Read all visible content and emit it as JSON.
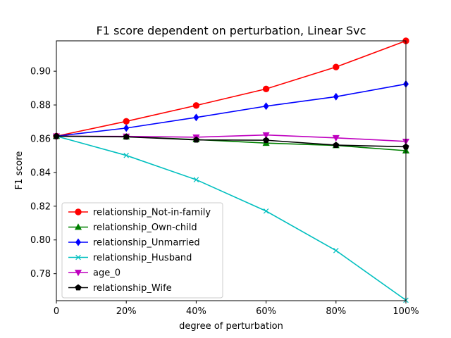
{
  "chart_data": {
    "type": "line",
    "title": "F1 score dependent on perturbation, Linear Svc",
    "xlabel": "degree of perturbation",
    "ylabel": "F1 score",
    "x": [
      0,
      20,
      40,
      60,
      80,
      100
    ],
    "x_tick_labels": [
      "0",
      "20%",
      "40%",
      "60%",
      "80%",
      "100%"
    ],
    "xlim": [
      0,
      100
    ],
    "ylim": [
      0.764,
      0.918
    ],
    "y_ticks": [
      0.78,
      0.8,
      0.82,
      0.84,
      0.86,
      0.88,
      0.9
    ],
    "y_tick_labels": [
      "0.78",
      "0.80",
      "0.82",
      "0.84",
      "0.86",
      "0.88",
      "0.90"
    ],
    "grid": false,
    "legend_position": "lower-left",
    "series": [
      {
        "name": "relationship_Not-in-family",
        "color": "#ff0000",
        "marker": "circle",
        "values": [
          0.8615,
          0.8703,
          0.8797,
          0.8895,
          0.9025,
          0.918
        ]
      },
      {
        "name": "relationship_Own-child",
        "color": "#008000",
        "marker": "triangle-up",
        "values": [
          0.8615,
          0.8612,
          0.8595,
          0.8574,
          0.856,
          0.8529
        ]
      },
      {
        "name": "relationship_Unmarried",
        "color": "#0000ff",
        "marker": "diamond",
        "values": [
          0.8615,
          0.8663,
          0.8726,
          0.8793,
          0.8849,
          0.8924
        ]
      },
      {
        "name": "relationship_Husband",
        "color": "#00bfbf",
        "marker": "x",
        "values": [
          0.8615,
          0.8501,
          0.8357,
          0.8171,
          0.7937,
          0.7643
        ]
      },
      {
        "name": "age_0",
        "color": "#bf00bf",
        "marker": "triangle-down",
        "values": [
          0.8615,
          0.8614,
          0.8609,
          0.8622,
          0.8605,
          0.8584
        ]
      },
      {
        "name": "relationship_Wife",
        "color": "#000000",
        "marker": "pentagon",
        "values": [
          0.8615,
          0.8611,
          0.8593,
          0.8591,
          0.8562,
          0.8552
        ]
      }
    ]
  }
}
